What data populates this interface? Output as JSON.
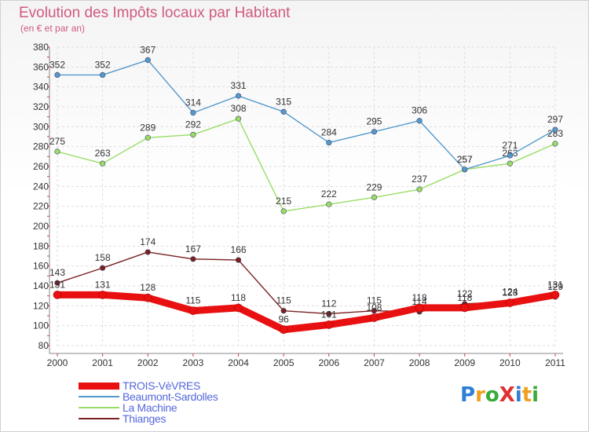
{
  "title": "Evolution des Impôts locaux par Habitant",
  "subtitle": "(en € et par an)",
  "logo": {
    "text": "ProXiti",
    "letters": [
      "P",
      "r",
      "o",
      "X",
      "i",
      "t",
      "i"
    ],
    "colors": [
      "#2f7fd6",
      "#f0a020",
      "#3aaa3a",
      "#e03030",
      "#2f7fd6",
      "#f0a020",
      "#3aaa3a"
    ]
  },
  "chart_data": {
    "type": "line",
    "title": "Evolution des Impôts locaux par Habitant",
    "ylabel": "(en € et par an)",
    "xlabel": "",
    "x": [
      "2000",
      "2001",
      "2002",
      "2003",
      "2004",
      "2005",
      "2006",
      "2007",
      "2008",
      "2009",
      "2010",
      "2011"
    ],
    "ylim": [
      80,
      380
    ],
    "yticks": [
      80,
      100,
      120,
      140,
      160,
      180,
      200,
      220,
      240,
      260,
      280,
      300,
      320,
      340,
      360,
      380
    ],
    "grid": true,
    "legend_position": "bottom-left",
    "series": [
      {
        "name": "Thianges",
        "color": "#7a2020",
        "values": [
          143,
          158,
          174,
          167,
          166,
          115,
          112,
          115,
          114,
          122,
          124,
          129
        ]
      },
      {
        "name": "La Machine",
        "color": "#99dd66",
        "values": [
          275,
          263,
          289,
          292,
          308,
          215,
          222,
          229,
          237,
          257,
          263,
          283
        ]
      },
      {
        "name": "Beaumont-Sardolles",
        "color": "#5599cc",
        "values": [
          352,
          352,
          367,
          314,
          331,
          315,
          284,
          295,
          306,
          257,
          271,
          297
        ]
      },
      {
        "name": "TROIS-VèVRES",
        "color": "#e81010",
        "values": [
          131,
          131,
          128,
          115,
          118,
          96,
          101,
          108,
          118,
          118,
          123,
          131
        ]
      }
    ],
    "legend_order": [
      "TROIS-VèVRES",
      "Beaumont-Sardolles",
      "La Machine",
      "Thianges"
    ]
  }
}
